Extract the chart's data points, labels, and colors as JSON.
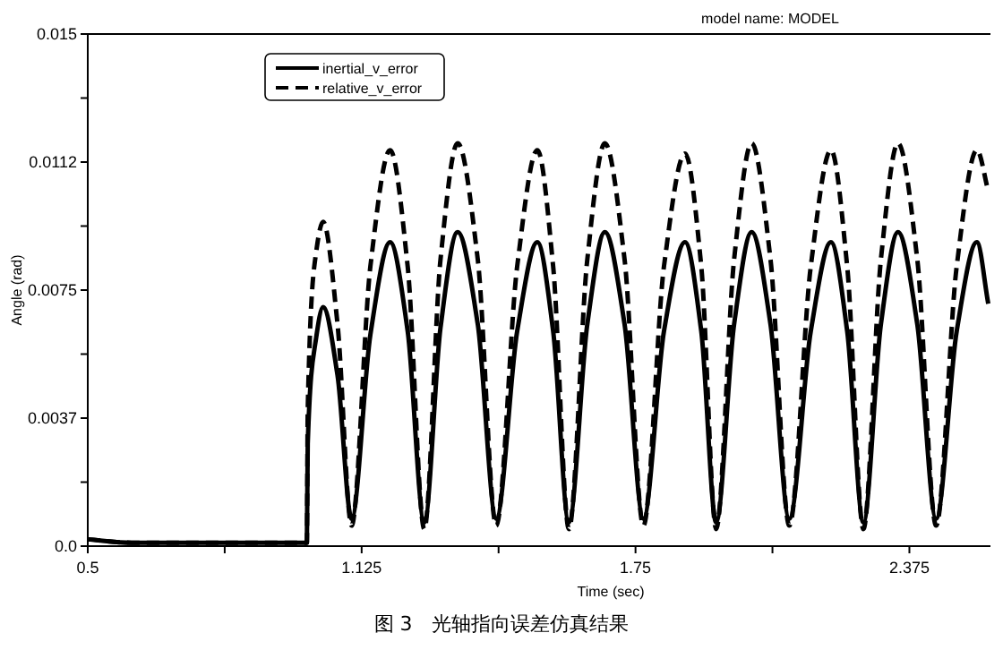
{
  "chart_data": {
    "type": "line",
    "title": "model name: MODEL",
    "xlabel": "Time (sec)",
    "ylabel": "Angle (rad)",
    "annotations": [
      "图 3　光轴指向误差仿真结果"
    ],
    "x": [
      0.5,
      0.6,
      0.75,
      1.0,
      1.002,
      1.02,
      1.037,
      1.07,
      1.102,
      1.145,
      1.19,
      1.23,
      1.268,
      1.305,
      1.344,
      1.39,
      1.432,
      1.48,
      1.526,
      1.562,
      1.598,
      1.64,
      1.68,
      1.725,
      1.768,
      1.815,
      1.863,
      1.9,
      1.934,
      1.975,
      2.015,
      2.058,
      2.101,
      2.15,
      2.196,
      2.233,
      2.27,
      2.31,
      2.349,
      2.393,
      2.436,
      2.483,
      2.529,
      2.555
    ],
    "xlim": [
      0.5,
      2.56
    ],
    "ylim": [
      0,
      0.015
    ],
    "xticks": [
      0.5,
      {
        "value": 0.8125,
        "label": null
      },
      1.125,
      {
        "value": 1.4375,
        "label": null
      },
      1.75,
      {
        "value": 2.0625,
        "label": null
      },
      2.375
    ],
    "yticks": [
      {
        "value": 0,
        "label": "0.0"
      },
      {
        "value": 0.001875,
        "label": null
      },
      {
        "value": 0.00375,
        "label": "0.0037"
      },
      {
        "value": 0.005625,
        "label": null
      },
      {
        "value": 0.0075,
        "label": "0.0075"
      },
      {
        "value": 0.009375,
        "label": null
      },
      {
        "value": 0.01125,
        "label": "0.0112"
      },
      {
        "value": 0.013125,
        "label": null
      },
      {
        "value": 0.015,
        "label": "0.015"
      }
    ],
    "legend": "top left",
    "series": [
      {
        "name": "inertial_v_error",
        "color": "#000000",
        "line_style": "solid",
        "values": [
          0.0002,
          0.0001,
          0.0001,
          0.0001,
          0.003,
          0.006,
          0.007,
          0.005,
          0.0008,
          0.0062,
          0.0089,
          0.0063,
          0.0007,
          0.0064,
          0.0092,
          0.0065,
          0.0008,
          0.0063,
          0.0089,
          0.0063,
          0.0007,
          0.0065,
          0.0092,
          0.0065,
          0.0008,
          0.0063,
          0.0089,
          0.0063,
          0.0007,
          0.0065,
          0.0092,
          0.0065,
          0.0008,
          0.0063,
          0.0089,
          0.0063,
          0.0007,
          0.0065,
          0.0092,
          0.0065,
          0.0008,
          0.0063,
          0.0089,
          0.0071
        ]
      },
      {
        "name": "relative_v_error",
        "color": "#000000",
        "line_style": "dashed",
        "values": [
          0.0002,
          0.0001,
          0.0001,
          0.0001,
          0.004,
          0.0085,
          0.0095,
          0.0065,
          0.0006,
          0.0082,
          0.0116,
          0.0082,
          0.0005,
          0.0084,
          0.0118,
          0.0084,
          0.0006,
          0.0082,
          0.0116,
          0.0082,
          0.0005,
          0.0084,
          0.0118,
          0.0084,
          0.0006,
          0.0082,
          0.0115,
          0.0082,
          0.0005,
          0.0084,
          0.0118,
          0.0084,
          0.0006,
          0.0082,
          0.0116,
          0.0082,
          0.0005,
          0.0084,
          0.0118,
          0.0084,
          0.0006,
          0.0082,
          0.0116,
          0.0104
        ]
      }
    ]
  }
}
